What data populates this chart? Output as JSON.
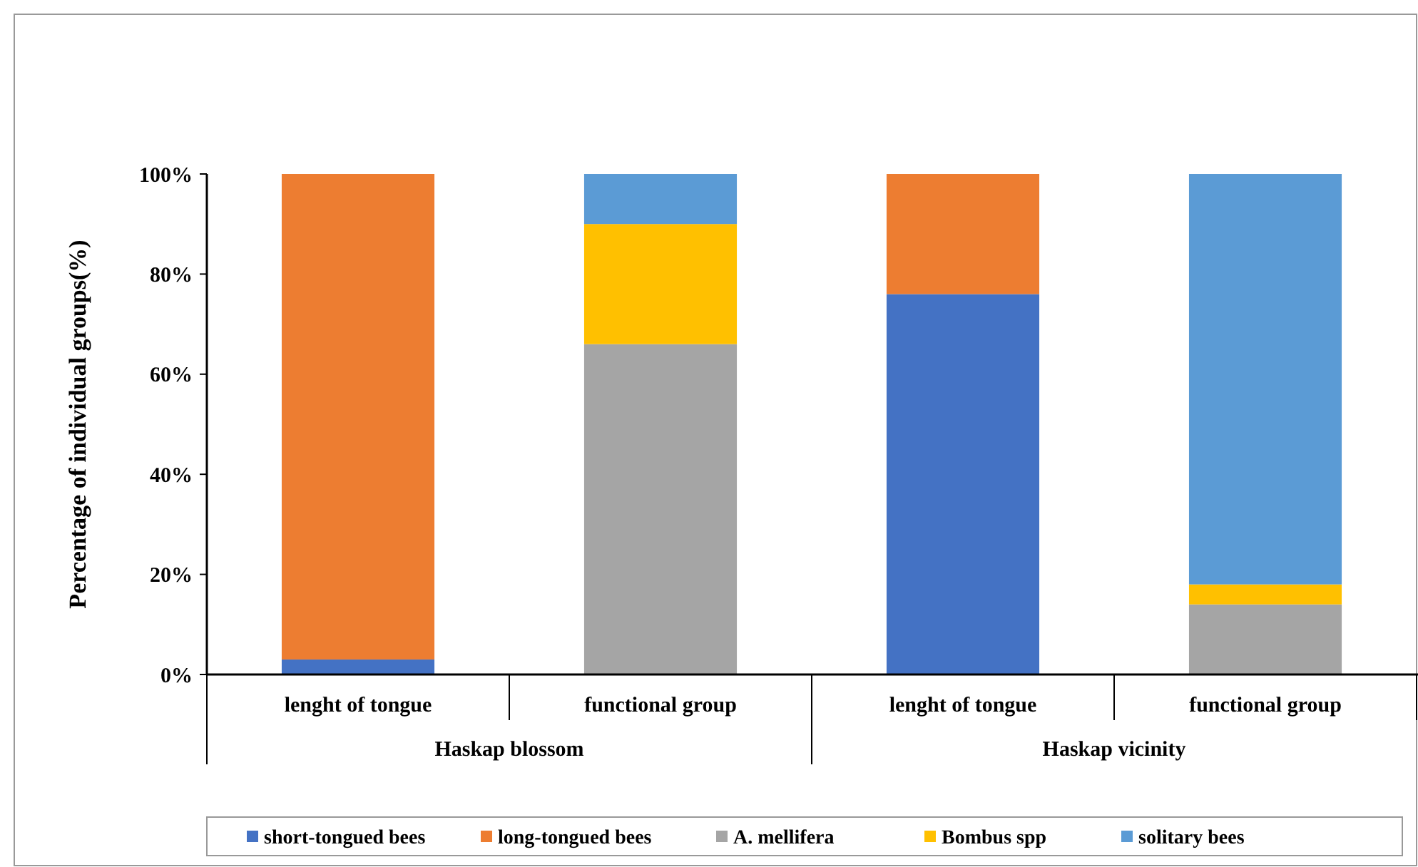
{
  "chart_data": {
    "type": "bar",
    "stacked": true,
    "ylabel": "Percentage of individual groups(%)",
    "categories": [
      "lenght of tongue",
      "functional group",
      "lenght of tongue",
      "functional group"
    ],
    "annotations": [
      "Haskap blossom",
      "Haskap vicinity"
    ],
    "series": [
      {
        "name": "short-tongued bees",
        "color": "#4472c4",
        "values": [
          3,
          null,
          76,
          null
        ]
      },
      {
        "name": "long-tongued bees",
        "color": "#ed7d31",
        "values": [
          97,
          null,
          24,
          null
        ]
      },
      {
        "name": "A. mellifera",
        "color": "#a5a5a5",
        "values": [
          null,
          66,
          null,
          14
        ]
      },
      {
        "name": "Bombus spp",
        "color": "#ffc000",
        "values": [
          null,
          24,
          null,
          4
        ]
      },
      {
        "name": "solitary bees",
        "color": "#5b9bd5",
        "values": [
          null,
          10,
          null,
          82
        ]
      }
    ],
    "ylim": [
      0,
      100
    ],
    "yticks": [
      {
        "value": 0,
        "label": "0%"
      },
      {
        "value": 20,
        "label": "20%"
      },
      {
        "value": 40,
        "label": "40%"
      },
      {
        "value": 60,
        "label": "60%"
      },
      {
        "value": 80,
        "label": "80%"
      },
      {
        "value": 100,
        "label": "100%"
      }
    ],
    "grid": false,
    "legend": "bottom"
  }
}
